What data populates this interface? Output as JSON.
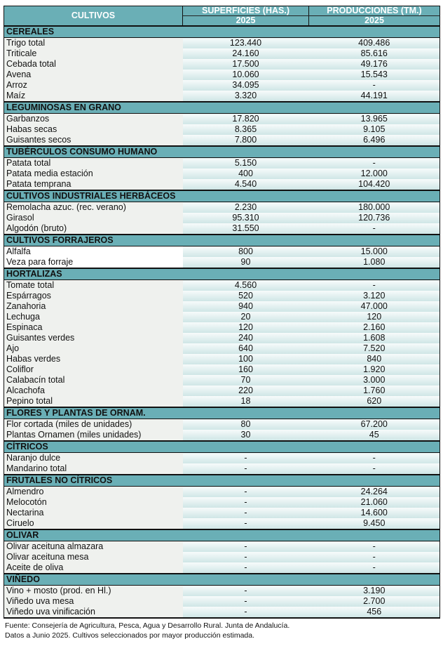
{
  "header": {
    "cultivos": "CULTIVOS",
    "superficies": "SUPERFICIES (HAS.)",
    "producciones": "PRODUCCIONES (TM.)",
    "year_sup": "2025",
    "year_prod": "2025"
  },
  "sections": [
    {
      "title": "CEREALES",
      "rows": [
        [
          "Trigo total",
          "123.440",
          "409.486"
        ],
        [
          "Triticale",
          "24.160",
          "85.616"
        ],
        [
          "Cebada total",
          "17.500",
          "49.176"
        ],
        [
          "Avena",
          "10.060",
          "15.543"
        ],
        [
          "Arroz",
          "34.095",
          "-"
        ],
        [
          "Maíz",
          "3.320",
          "44.191"
        ]
      ]
    },
    {
      "title": "LEGUMINOSAS EN GRANO",
      "rows": [
        [
          "Garbanzos",
          "17.820",
          "13.965"
        ],
        [
          "Habas secas",
          "8.365",
          "9.105"
        ],
        [
          "Guisantes secos",
          "7.800",
          "6.496"
        ]
      ]
    },
    {
      "title": "TUBÉRCULOS CONSUMO HUMANO",
      "rows": [
        [
          "Patata total",
          "5.150",
          "-"
        ],
        [
          "Patata media estación",
          "400",
          "12.000"
        ],
        [
          "Patata temprana",
          "4.540",
          "104.420"
        ]
      ]
    },
    {
      "title": "CULTIVOS INDUSTRIALES HERBÁCEOS",
      "rows": [
        [
          "Remolacha azuc. (rec. verano)",
          "2.230",
          "180.000"
        ],
        [
          "Girasol",
          "95.310",
          "120.736"
        ],
        [
          "Algodón (bruto)",
          "31.550",
          "-"
        ]
      ]
    },
    {
      "title": "CULTIVOS FORRAJEROS",
      "white": true,
      "rows": [
        [
          "Alfalfa",
          "800",
          "15.000"
        ],
        [
          "Veza para forraje",
          "90",
          "1.080"
        ]
      ]
    },
    {
      "title": "HORTALIZAS",
      "rows": [
        [
          "Tomate total",
          "4.560",
          "-"
        ],
        [
          "Espárragos",
          "520",
          "3.120"
        ],
        [
          "Zanahoria",
          "940",
          "47.000"
        ],
        [
          "Lechuga",
          "20",
          "120"
        ],
        [
          "Espinaca",
          "120",
          "2.160"
        ],
        [
          "Guisantes verdes",
          "240",
          "1.608"
        ],
        [
          "Ajo",
          "640",
          "7.520"
        ],
        [
          "Habas verdes",
          "100",
          "840"
        ],
        [
          "Coliflor",
          "160",
          "1.920"
        ],
        [
          "Calabacín total",
          "70",
          "3.000"
        ],
        [
          "Alcachofa",
          "220",
          "1.760"
        ],
        [
          "Pepino total",
          "18",
          "620"
        ]
      ]
    },
    {
      "title": "FLORES Y PLANTAS DE ORNAM.",
      "rows": [
        [
          "Flor cortada (miles de unidades)",
          "80",
          "67.200"
        ],
        [
          "Plantas Ornamen (miles unidades)",
          "30",
          "45"
        ]
      ]
    },
    {
      "title": "CÍTRICOS",
      "rows": [
        [
          "Naranjo dulce",
          "-",
          "-"
        ],
        [
          "Mandarino total",
          "-",
          "-"
        ]
      ]
    },
    {
      "title": "FRUTALES NO CÍTRICOS",
      "rows": [
        [
          "Almendro",
          "-",
          "24.264"
        ],
        [
          "Melocotón",
          "-",
          "21.060"
        ],
        [
          "Nectarina",
          "-",
          "14.600"
        ],
        [
          "Ciruelo",
          "-",
          "9.450"
        ]
      ]
    },
    {
      "title": "OLIVAR",
      "rows": [
        [
          "Olivar aceituna almazara",
          "-",
          "-"
        ],
        [
          "Olivar aceituna mesa",
          "-",
          "-"
        ],
        [
          "Aceite de oliva",
          "-",
          "-"
        ]
      ]
    },
    {
      "title": "VIÑEDO",
      "rows": [
        [
          "Vino + mosto (prod. en Hl.)",
          "-",
          "3.190"
        ],
        [
          "Viñedo uva mesa",
          "-",
          "2.700"
        ],
        [
          "Viñedo uva vinificación",
          "-",
          "456"
        ]
      ]
    }
  ],
  "footer": {
    "line1": "Fuente: Consejería de Agricultura, Pesca, Agua y Desarrollo Rural. Junta de Andalucía.",
    "line2": "Datos a Junio 2025. Cultivos seleccionados por mayor producción estimada."
  }
}
